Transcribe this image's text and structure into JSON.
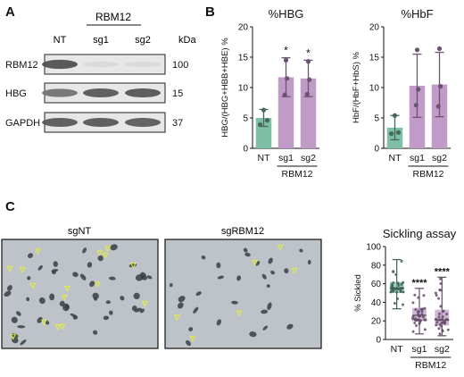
{
  "panels": {
    "a": {
      "label": "A"
    },
    "b": {
      "label": "B"
    },
    "c": {
      "label": "C"
    }
  },
  "western_blot": {
    "group_header": "RBM12",
    "lane_labels": [
      "NT",
      "sg1",
      "sg2"
    ],
    "kda_header": "kDa",
    "bands": [
      {
        "protein": "RBM12",
        "kda": "100",
        "intensities": [
          0.85,
          0.05,
          0.05
        ]
      },
      {
        "protein": "HBG",
        "kda": "15",
        "intensities": [
          0.65,
          0.8,
          0.82
        ]
      },
      {
        "protein": "GAPDH",
        "kda": "37",
        "intensities": [
          0.8,
          0.8,
          0.78
        ]
      }
    ]
  },
  "images": {
    "left_title": "sgNT",
    "right_title": "sgRBM12"
  },
  "chart_data": [
    {
      "type": "bar",
      "title": "%HBG",
      "ylabel": "HBG/(HBG+HBB+HBE) %",
      "categories": [
        "NT",
        "sg1",
        "sg2"
      ],
      "group_label": "RBM12",
      "values": [
        5.0,
        11.7,
        11.5
      ],
      "error": [
        1.4,
        3.2,
        3.0
      ],
      "points": [
        [
          3.9,
          4.6,
          6.3
        ],
        [
          8.8,
          11.5,
          14.5
        ],
        [
          8.9,
          11.3,
          14.3
        ]
      ],
      "significance": [
        "",
        "*",
        "*"
      ],
      "ylim": [
        0,
        20
      ],
      "yticks": [
        0,
        5,
        10,
        15,
        20
      ],
      "colors": [
        "#7fbfa6",
        "#c09bc8",
        "#c09bc8"
      ]
    },
    {
      "type": "bar",
      "title": "%HbF",
      "ylabel": "HbF/(HbF+HbS) %",
      "categories": [
        "NT",
        "sg1",
        "sg2"
      ],
      "group_label": "RBM12",
      "values": [
        3.4,
        10.3,
        10.5
      ],
      "error": [
        2.0,
        5.2,
        5.3
      ],
      "points": [
        [
          2.4,
          2.6,
          5.4
        ],
        [
          7.1,
          9.7,
          16.2
        ],
        [
          6.9,
          10.2,
          16.4
        ]
      ],
      "significance": [
        "",
        "",
        ""
      ],
      "ylim": [
        0,
        20
      ],
      "yticks": [
        0,
        5,
        10,
        15,
        20
      ],
      "colors": [
        "#7fbfa6",
        "#c09bc8",
        "#c09bc8"
      ]
    },
    {
      "type": "box",
      "title": "Sickling assay",
      "ylabel": "% Sickled",
      "categories": [
        "NT",
        "sg1",
        "sg2"
      ],
      "group_label": "RBM12",
      "boxes": [
        {
          "min": 33,
          "q1": 50,
          "median": 55,
          "q3": 62,
          "max": 86
        },
        {
          "min": 6,
          "q1": 20,
          "median": 26,
          "q3": 34,
          "max": 55
        },
        {
          "min": 4,
          "q1": 15,
          "median": 21,
          "q3": 32,
          "max": 67
        }
      ],
      "significance": [
        "",
        "****",
        "****"
      ],
      "ylim": [
        0,
        100
      ],
      "yticks": [
        0,
        20,
        40,
        60,
        80,
        100
      ],
      "colors": [
        "#7fbfa6",
        "#c09bc8",
        "#c09bc8"
      ]
    }
  ]
}
